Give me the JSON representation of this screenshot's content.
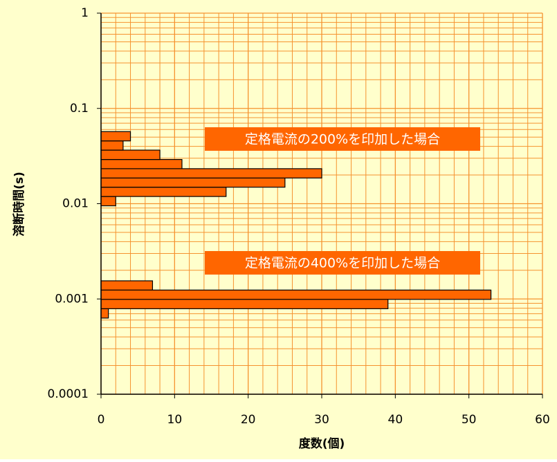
{
  "chart_data": {
    "type": "histogram",
    "orientation": "horizontal",
    "xlabel": "度数(個)",
    "ylabel": "溶断時間(s)",
    "xlim": [
      0,
      60
    ],
    "xticks": [
      0,
      10,
      20,
      30,
      40,
      50,
      60
    ],
    "x_minor_ticks": [
      2,
      4,
      6,
      8,
      12,
      14,
      16,
      18,
      22,
      24,
      26,
      28,
      32,
      34,
      36,
      38,
      42,
      44,
      46,
      48,
      52,
      54,
      56,
      58
    ],
    "ylim": [
      0.0001,
      1
    ],
    "yticks": [
      0.0001,
      0.001,
      0.01,
      0.1,
      1
    ],
    "y_minor_ticks": [
      0.0002,
      0.0003,
      0.0004,
      0.0005,
      0.0006,
      0.0007,
      0.0008,
      0.0009,
      0.002,
      0.003,
      0.004,
      0.005,
      0.006,
      0.007,
      0.008,
      0.009,
      0.02,
      0.03,
      0.04,
      0.05,
      0.06,
      0.07,
      0.08,
      0.09,
      0.2,
      0.3,
      0.4,
      0.5,
      0.6,
      0.7,
      0.8,
      0.9
    ],
    "ylog": true,
    "grid": true,
    "grid_color": "#f5922f",
    "background": "#ffffcc",
    "annotations": [
      "定格電流の200%を印加した場合",
      "定格電流の400%を印加した場合"
    ],
    "annotation_color": "#ff6600",
    "series": [
      {
        "color": "#ff6600",
        "bins": [
          0.0095,
          0.0119,
          0.0149,
          0.0186,
          0.0233,
          0.0291,
          0.0365,
          0.0456,
          0.0571
        ],
        "values": [
          2,
          17,
          25,
          30,
          11,
          8,
          3,
          4
        ]
      },
      {
        "color": "#ff6600",
        "bins": [
          0.00063,
          0.00079,
          0.00099,
          0.00124,
          0.00155
        ],
        "values": [
          1,
          39,
          53,
          7
        ]
      }
    ]
  }
}
